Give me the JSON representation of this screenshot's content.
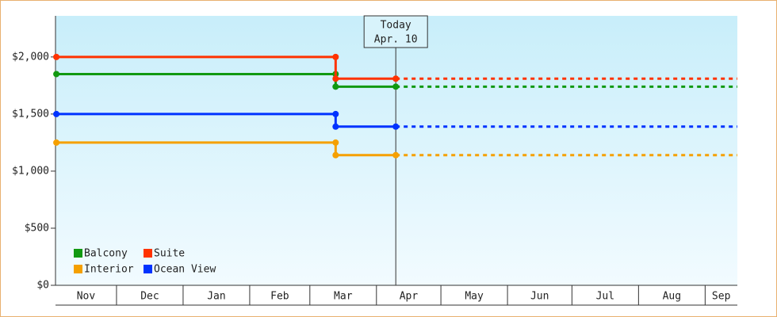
{
  "chart_data": {
    "type": "step-line",
    "xlim": [
      1.6,
      319
    ],
    "xticks": [
      {
        "value": 0,
        "label": "Nov"
      },
      {
        "value": 30,
        "label": "Dec"
      },
      {
        "value": 61,
        "label": "Jan"
      },
      {
        "value": 92,
        "label": "Feb"
      },
      {
        "value": 120,
        "label": "Mar"
      },
      {
        "value": 151,
        "label": "Apr"
      },
      {
        "value": 181,
        "label": "May"
      },
      {
        "value": 212,
        "label": "Jun"
      },
      {
        "value": 242,
        "label": "Jul"
      },
      {
        "value": 273,
        "label": "Aug"
      },
      {
        "value": 304,
        "label": "Sep"
      }
    ],
    "ylim": [
      0,
      2360
    ],
    "yticks": [
      {
        "value": 0,
        "label": "$0"
      },
      {
        "value": 500,
        "label": "$500"
      },
      {
        "value": 1000,
        "label": "$1,000"
      },
      {
        "value": 1500,
        "label": "$1,500"
      },
      {
        "value": 2000,
        "label": "$2,000"
      }
    ],
    "today": {
      "x": 160,
      "label": "Today",
      "date": "Apr. 10"
    },
    "series": [
      {
        "name": "Balcony",
        "color": "#119911",
        "x": [
          2,
          132,
          132,
          160
        ],
        "values": [
          1850,
          1850,
          1740,
          1740
        ]
      },
      {
        "name": "Suite",
        "color": "#ff3300",
        "x": [
          2,
          132,
          132,
          160
        ],
        "values": [
          2000,
          2000,
          1810,
          1810
        ]
      },
      {
        "name": "Interior",
        "color": "#f5a000",
        "x": [
          2,
          132,
          132,
          160
        ],
        "values": [
          1250,
          1250,
          1140,
          1140
        ]
      },
      {
        "name": "Ocean View",
        "color": "#0033ff",
        "x": [
          2,
          132,
          132,
          160
        ],
        "values": [
          1500,
          1500,
          1390,
          1390
        ]
      }
    ]
  }
}
